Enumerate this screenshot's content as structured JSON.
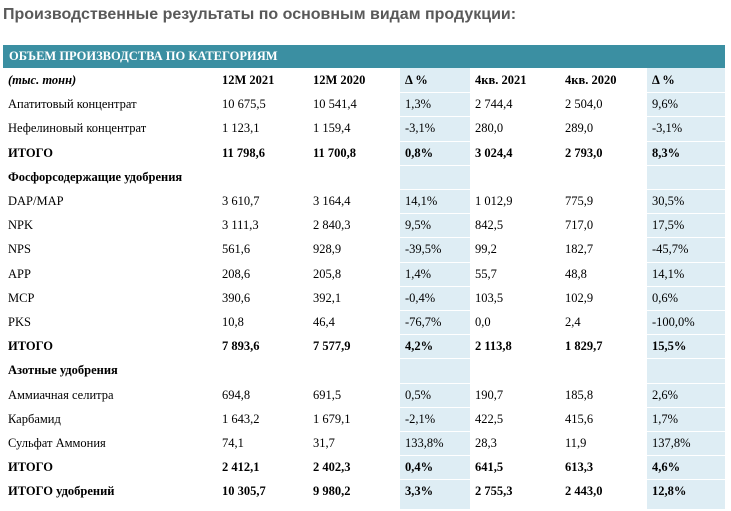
{
  "title": "Производственные результаты по основным видам продукции:",
  "table": {
    "header_bar": "ОБЪЕМ ПРОИЗВОДСТВА ПО КАТЕГОРИЯМ",
    "columns": [
      "(тыс. тонн)",
      "12М 2021",
      "12М 2020",
      "Δ %",
      "4кв. 2021",
      "4кв. 2020",
      "Δ %"
    ],
    "rows": [
      {
        "cells": [
          "Апатитовый концентрат",
          "10 675,5",
          "10 541,4",
          "1,3%",
          "2 744,4",
          "2 504,0",
          "9,6%"
        ]
      },
      {
        "cells": [
          "Нефелиновый концентрат",
          "1 123,1",
          "1 159,4",
          "-3,1%",
          "280,0",
          "289,0",
          "-3,1%"
        ]
      },
      {
        "cells": [
          "ИТОГО",
          "11 798,6",
          "11 700,8",
          "0,8%",
          "3 024,4",
          "2 793,0",
          "8,3%"
        ],
        "bold": true
      },
      {
        "cells": [
          "Фосфорсодержащие удобрения"
        ],
        "bold": true
      },
      {
        "cells": [
          "DAP/MAP",
          "3 610,7",
          "3 164,4",
          "14,1%",
          "1 012,9",
          "775,9",
          "30,5%"
        ]
      },
      {
        "cells": [
          "NPK",
          "3 111,3",
          "2 840,3",
          "9,5%",
          "842,5",
          "717,0",
          "17,5%"
        ]
      },
      {
        "cells": [
          "NPS",
          "561,6",
          "928,9",
          "-39,5%",
          "99,2",
          "182,7",
          "-45,7%"
        ]
      },
      {
        "cells": [
          "APP",
          "208,6",
          "205,8",
          "1,4%",
          "55,7",
          "48,8",
          "14,1%"
        ]
      },
      {
        "cells": [
          "MCP",
          "390,6",
          "392,1",
          "-0,4%",
          "103,5",
          "102,9",
          "0,6%"
        ]
      },
      {
        "cells": [
          "PKS",
          "10,8",
          "46,4",
          "-76,7%",
          "0,0",
          "2,4",
          "-100,0%"
        ]
      },
      {
        "cells": [
          "ИТОГО",
          "7 893,6",
          "7 577,9",
          "4,2%",
          "2 113,8",
          "1 829,7",
          "15,5%"
        ],
        "bold": true
      },
      {
        "cells": [
          "Азотные удобрения"
        ],
        "bold": true
      },
      {
        "cells": [
          "Аммиачная селитра",
          "694,8",
          "691,5",
          "0,5%",
          "190,7",
          "185,8",
          "2,6%"
        ]
      },
      {
        "cells": [
          "Карбамид",
          "1 643,2",
          "1 679,1",
          "-2,1%",
          "422,5",
          "415,6",
          "1,7%"
        ]
      },
      {
        "cells": [
          "Сульфат Аммония",
          "74,1",
          "31,7",
          "133,8%",
          "28,3",
          "11,9",
          "137,8%"
        ]
      },
      {
        "cells": [
          "ИТОГО",
          "2 412,1",
          "2 402,3",
          "0,4%",
          "641,5",
          "613,3",
          "4,6%"
        ],
        "bold": true
      },
      {
        "cells": [
          "ИТОГО удобрений",
          "10 305,7",
          "9 980,2",
          "3,3%",
          "2 755,3",
          "2 443,0",
          "12,8%"
        ],
        "bold": true
      }
    ]
  }
}
